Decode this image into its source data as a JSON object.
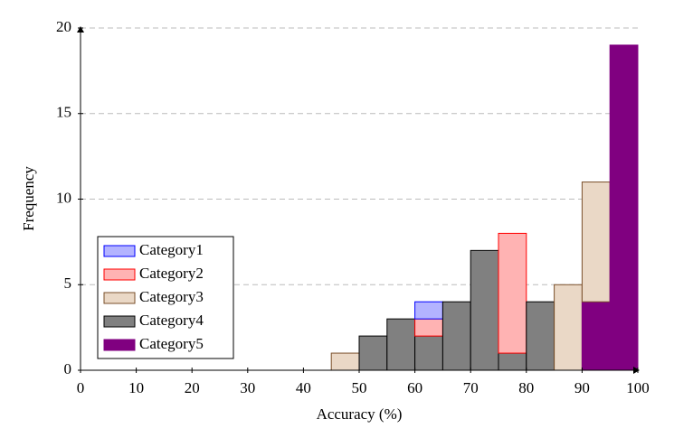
{
  "chart_data": {
    "type": "stacked_histogram",
    "xlabel": "Accuracy (%)",
    "ylabel": "Frequency",
    "bins": [
      0,
      5,
      10,
      15,
      20,
      25,
      30,
      35,
      40,
      45,
      50,
      55,
      60,
      65,
      70,
      75,
      80,
      85,
      90,
      95,
      100
    ],
    "series": [
      {
        "name": "Category1",
        "color": "#b3b3ff",
        "edge_color": "#0000ff",
        "values": [
          0,
          0,
          0,
          0,
          0,
          0,
          0,
          0,
          0,
          0,
          0,
          0,
          1,
          0,
          0,
          0,
          0,
          0,
          0,
          0
        ]
      },
      {
        "name": "Category2",
        "color": "#ffb3b3",
        "edge_color": "#ff0000",
        "values": [
          0,
          0,
          0,
          0,
          0,
          0,
          0,
          0,
          0,
          0,
          0,
          0,
          1,
          0,
          0,
          7,
          0,
          0,
          0,
          0
        ]
      },
      {
        "name": "Category3",
        "color": "#ead8c6",
        "edge_color": "#7a4f2a",
        "values": [
          0,
          0,
          0,
          0,
          0,
          0,
          0,
          0,
          0,
          1,
          0,
          0,
          0,
          0,
          0,
          0,
          0,
          5,
          7,
          0
        ]
      },
      {
        "name": "Category4",
        "color": "#808080",
        "edge_color": "#000000",
        "values": [
          0,
          0,
          0,
          0,
          0,
          0,
          0,
          0,
          0,
          0,
          2,
          3,
          2,
          4,
          7,
          1,
          4,
          0,
          0,
          0
        ]
      },
      {
        "name": "Category5",
        "color": "#800080",
        "edge_color": "#800080",
        "values": [
          0,
          0,
          0,
          0,
          0,
          0,
          0,
          0,
          0,
          0,
          0,
          0,
          0,
          0,
          0,
          0,
          0,
          0,
          4,
          19
        ]
      }
    ],
    "xlim": [
      0,
      100
    ],
    "xticks": [
      0,
      10,
      20,
      30,
      40,
      50,
      60,
      70,
      80,
      90,
      100
    ],
    "ylim": [
      0,
      20
    ],
    "yticks": [
      0,
      5,
      10,
      15,
      20
    ],
    "grid": true,
    "legend": "lower left"
  }
}
